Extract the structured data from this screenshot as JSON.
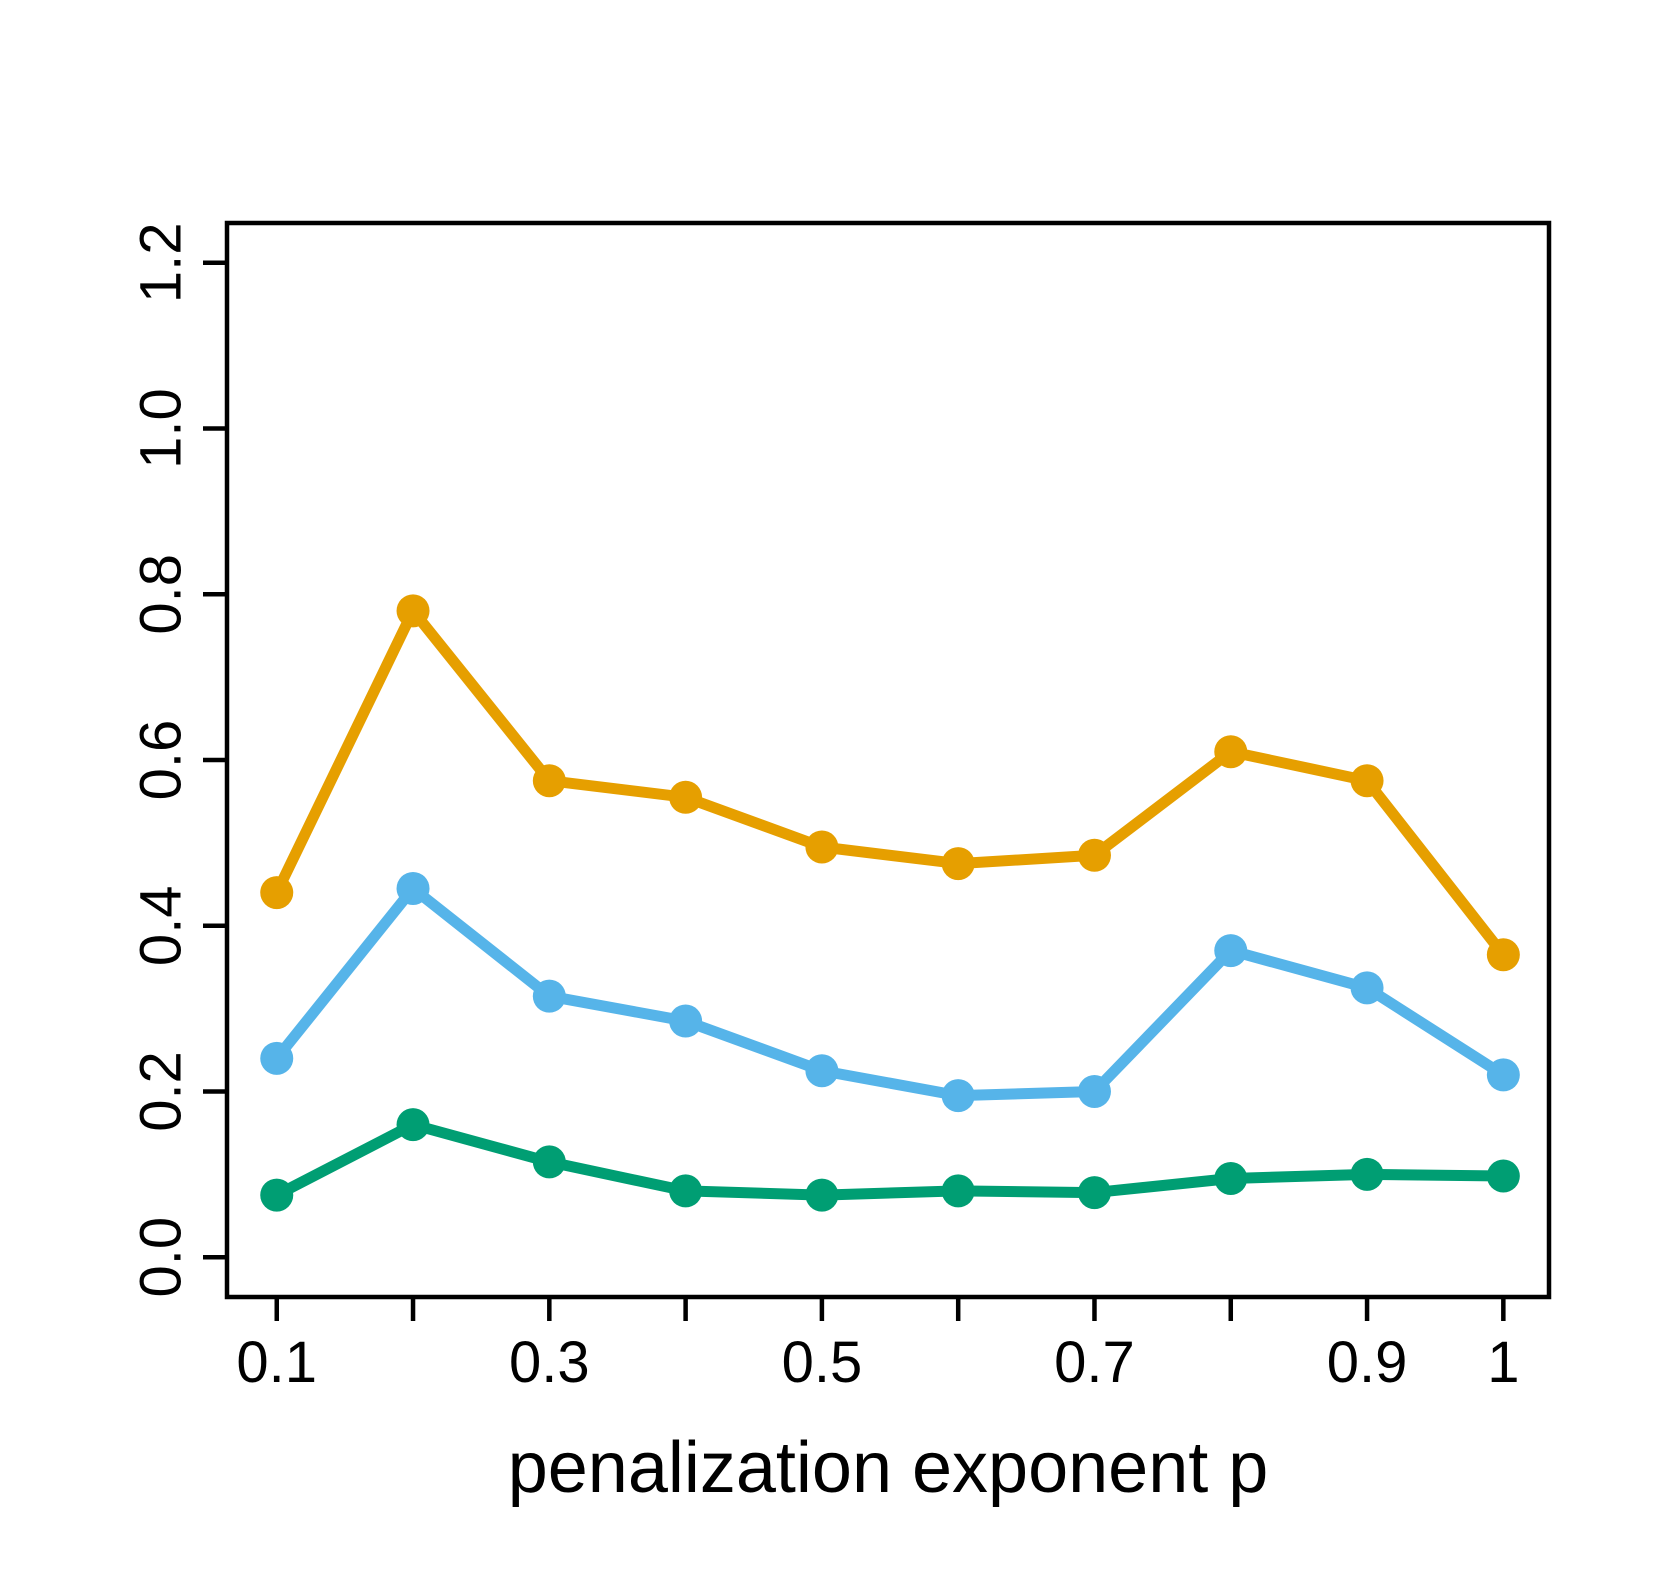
{
  "chart_data": {
    "type": "line",
    "title": "",
    "xlabel": "penalization exponent p",
    "ylabel": "",
    "x": [
      0.1,
      0.2,
      0.3,
      0.4,
      0.5,
      0.6,
      0.7,
      0.8,
      0.9,
      1.0
    ],
    "series": [
      {
        "name": "orange",
        "color": "#E69F00",
        "values": [
          0.44,
          0.78,
          0.575,
          0.555,
          0.495,
          0.475,
          0.485,
          0.61,
          0.575,
          0.365
        ]
      },
      {
        "name": "sky-blue",
        "color": "#56B4E9",
        "values": [
          0.24,
          0.445,
          0.315,
          0.285,
          0.225,
          0.195,
          0.2,
          0.37,
          0.325,
          0.22
        ]
      },
      {
        "name": "green",
        "color": "#009E73",
        "values": [
          0.075,
          0.16,
          0.115,
          0.08,
          0.075,
          0.08,
          0.078,
          0.095,
          0.1,
          0.098
        ]
      }
    ],
    "x_ticks": [
      0.1,
      0.2,
      0.3,
      0.4,
      0.5,
      0.6,
      0.7,
      0.8,
      0.9,
      1.0
    ],
    "x_tick_labels": [
      {
        "value": 0.1,
        "label": "0.1"
      },
      {
        "value": 0.3,
        "label": "0.3"
      },
      {
        "value": 0.5,
        "label": "0.5"
      },
      {
        "value": 0.7,
        "label": "0.7"
      },
      {
        "value": 0.9,
        "label": "0.9"
      },
      {
        "value": 1.0,
        "label": "1"
      }
    ],
    "y_ticks": [
      {
        "value": 0.0,
        "label": "0.0"
      },
      {
        "value": 0.2,
        "label": "0.2"
      },
      {
        "value": 0.4,
        "label": "0.4"
      },
      {
        "value": 0.6,
        "label": "0.6"
      },
      {
        "value": 0.8,
        "label": "0.8"
      },
      {
        "value": 1.0,
        "label": "1.0"
      },
      {
        "value": 1.2,
        "label": "1.2"
      }
    ],
    "xlim": [
      0.0635,
      1.0335
    ],
    "ylim": [
      -0.048,
      1.248
    ],
    "grid": false,
    "legend": "none",
    "axis_color": "#000000"
  }
}
